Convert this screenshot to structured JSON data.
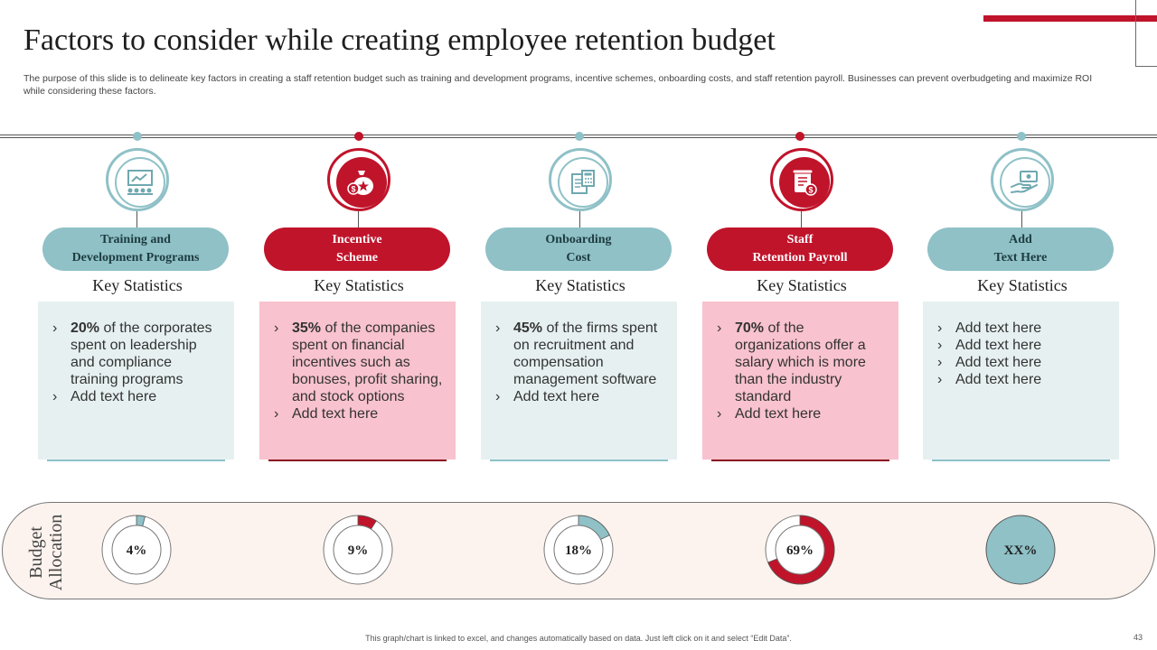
{
  "title": "Factors to consider while creating employee retention budget",
  "subtitle": "The purpose of this slide is to delineate key factors in creating a staff retention budget such as training and development programs, incentive schemes, onboarding costs, and staff retention payroll. Businesses can prevent overbudgeting and maximize ROI while considering these factors.",
  "colors": {
    "teal": "#8fc1c7",
    "red": "#c0142b",
    "teal_card": "#e6f0f1",
    "red_card": "#f8c2ce"
  },
  "columns": [
    {
      "icon": "presentation-icon",
      "label": "Training  and\nDevelopment Programs",
      "heading": "Key Statistics",
      "items": [
        {
          "bold": "20%",
          "text": " of the corporates spent on leadership and compliance training programs"
        },
        {
          "bold": "",
          "text": "Add text here"
        }
      ]
    },
    {
      "icon": "money-bag-icon",
      "label": "Incentive\nScheme",
      "heading": "Key Statistics",
      "items": [
        {
          "bold": "35%",
          "text": " of the companies spent on financial incentives such as bonuses, profit sharing, and stock options"
        },
        {
          "bold": "",
          "text": "Add text here"
        }
      ]
    },
    {
      "icon": "calculator-document-icon",
      "label": "Onboarding\nCost",
      "heading": "Key Statistics",
      "items": [
        {
          "bold": "45%",
          "text": " of the firms spent on recruitment and compensation management software"
        },
        {
          "bold": "",
          "text": "Add text here"
        }
      ]
    },
    {
      "icon": "payroll-scroll-icon",
      "label": "Staff\nRetention Payroll",
      "heading": "Key Statistics",
      "items": [
        {
          "bold": "70%",
          "text": " of the organizations offer a salary which is more than the industry standard"
        },
        {
          "bold": "",
          "text": "Add text here"
        }
      ]
    },
    {
      "icon": "hand-cash-icon",
      "label": "Add\nText Here",
      "heading": "Key Statistics",
      "items": [
        {
          "bold": "",
          "text": "Add text here"
        },
        {
          "bold": "",
          "text": "Add text here"
        },
        {
          "bold": "",
          "text": "Add text here"
        },
        {
          "bold": "",
          "text": "Add text here"
        }
      ]
    }
  ],
  "budget": {
    "label": "Budget\nAllocation",
    "donuts": [
      {
        "label": "4%",
        "value": 4
      },
      {
        "label": "9%",
        "value": 9
      },
      {
        "label": "18%",
        "value": 18
      },
      {
        "label": "69%",
        "value": 69
      },
      {
        "label": "XX%",
        "value": null
      }
    ]
  },
  "footer": "This graph/chart is linked to excel, and changes automatically based on data. Just left click on it and select “Edit Data”.",
  "page_number": "43"
}
